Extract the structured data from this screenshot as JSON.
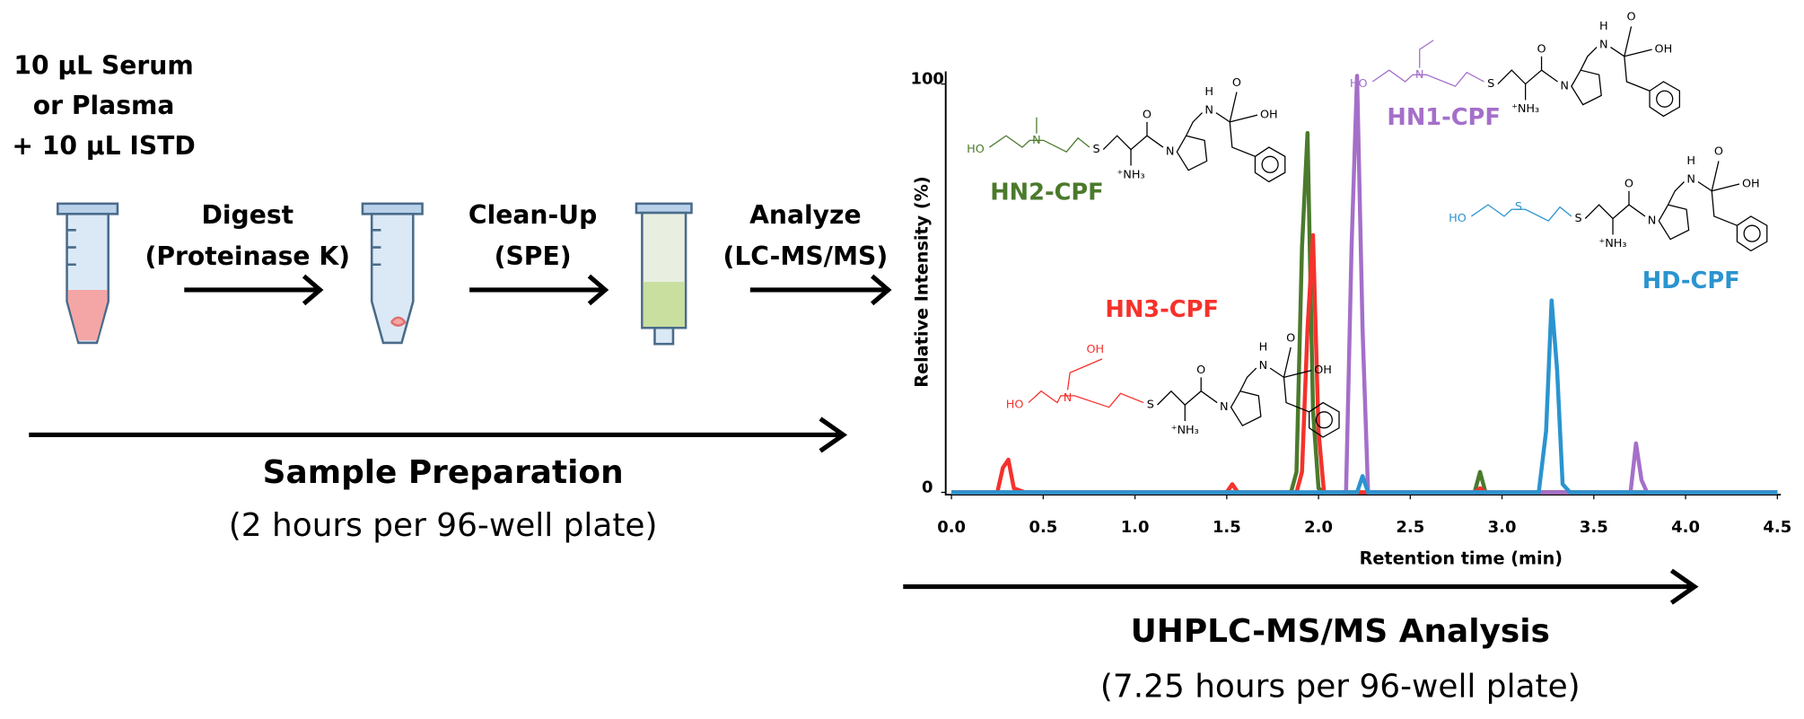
{
  "inputs": [
    "10 µL Serum",
    "or Plasma",
    "+ 10 µL ISTD"
  ],
  "steps": [
    {
      "label": "Digest",
      "detail": "(Proteinase K)"
    },
    {
      "label": "Clean-Up",
      "detail": "(SPE)"
    },
    {
      "label": "Analyze",
      "detail": "(LC-MS/MS)"
    }
  ],
  "stages": [
    {
      "title": "Sample Preparation",
      "duration": "(2 hours per 96-well plate)"
    },
    {
      "title": "UHPLC-MS/MS Analysis",
      "duration": "(7.25 hours per 96-well plate)"
    }
  ],
  "chart_data": {
    "type": "line",
    "xlabel": "Retention time (min)",
    "ylabel": "Relative Intensity (%)",
    "xlim": [
      0,
      4.5
    ],
    "ylim": [
      0,
      103
    ],
    "xticks": [
      {
        "value": 0,
        "label": "0.0"
      },
      0.5,
      {
        "value": 1,
        "label": "1.0"
      },
      1.5,
      {
        "value": 2,
        "label": "2.0"
      },
      2.5,
      {
        "value": 3,
        "label": "3.0"
      },
      3.5,
      {
        "value": 4,
        "label": "4.0"
      },
      4.5
    ],
    "yticks": [
      0,
      100
    ],
    "x": [
      0,
      0.25,
      0.28,
      0.31,
      0.34,
      0.4,
      1.5,
      1.53,
      1.56,
      1.85,
      1.88,
      1.91,
      1.94,
      1.97,
      2.0,
      2.03,
      2.15,
      2.18,
      2.21,
      2.24,
      2.27,
      2.85,
      2.88,
      2.91,
      3.2,
      3.24,
      3.27,
      3.3,
      3.33,
      3.37,
      3.7,
      3.73,
      3.76,
      3.79,
      4.5
    ],
    "series": [
      {
        "name": "HN2-CPF",
        "color": "#4b7a2c",
        "values": [
          0,
          0,
          0,
          0,
          0,
          0,
          0,
          0,
          0,
          0,
          5,
          60,
          88,
          20,
          1,
          0,
          0,
          0,
          0,
          0,
          0,
          0,
          5,
          0,
          0,
          0,
          0,
          0,
          0,
          0,
          0,
          0,
          0,
          0,
          0
        ],
        "structure": {
          "head": [
            "HO",
            "N"
          ],
          "tail": [
            "S",
            "⁺NH₃",
            "N",
            "O",
            "N",
            "H",
            "O",
            "OH"
          ]
        }
      },
      {
        "name": "HN3-CPF",
        "color": "#f5322c",
        "values": [
          0,
          0,
          6,
          8,
          1,
          0,
          0,
          2,
          0,
          0,
          0,
          5,
          40,
          63,
          15,
          0,
          0,
          0,
          0,
          0,
          0,
          0,
          1,
          0,
          0,
          0,
          0,
          0,
          0,
          0,
          0,
          0,
          0,
          0,
          0
        ],
        "structure": {
          "head": [
            "HO",
            "N",
            "OH"
          ],
          "tail": [
            "S",
            "⁺NH₃",
            "N",
            "O",
            "N",
            "H",
            "O",
            "OH"
          ]
        }
      },
      {
        "name": "HN1-CPF",
        "color": "#a46fc9",
        "values": [
          0,
          0,
          0,
          0,
          0,
          0,
          0,
          0,
          0,
          0,
          0,
          0,
          0,
          0,
          0,
          0,
          0,
          60,
          102,
          40,
          0,
          0,
          0,
          0,
          0,
          0,
          0,
          0,
          0,
          0,
          0,
          12,
          3,
          0,
          0
        ],
        "structure": {
          "head": [
            "HO",
            "N"
          ],
          "tail": [
            "S",
            "⁺NH₃",
            "N",
            "O",
            "N",
            "H",
            "O",
            "OH"
          ]
        }
      },
      {
        "name": "HD-CPF",
        "color": "#2b94cf",
        "values": [
          0,
          0,
          0,
          0,
          0,
          0,
          0,
          0,
          0,
          0,
          0,
          0,
          0,
          0,
          0,
          0,
          0,
          0,
          0,
          4,
          0,
          0,
          0,
          0,
          0,
          15,
          47,
          30,
          2,
          0,
          0,
          0,
          0,
          0,
          0
        ],
        "structure": {
          "head": [
            "HO",
            "S"
          ],
          "tail": [
            "S",
            "⁺NH₃",
            "N",
            "O",
            "N",
            "H",
            "O",
            "OH"
          ]
        }
      }
    ]
  }
}
